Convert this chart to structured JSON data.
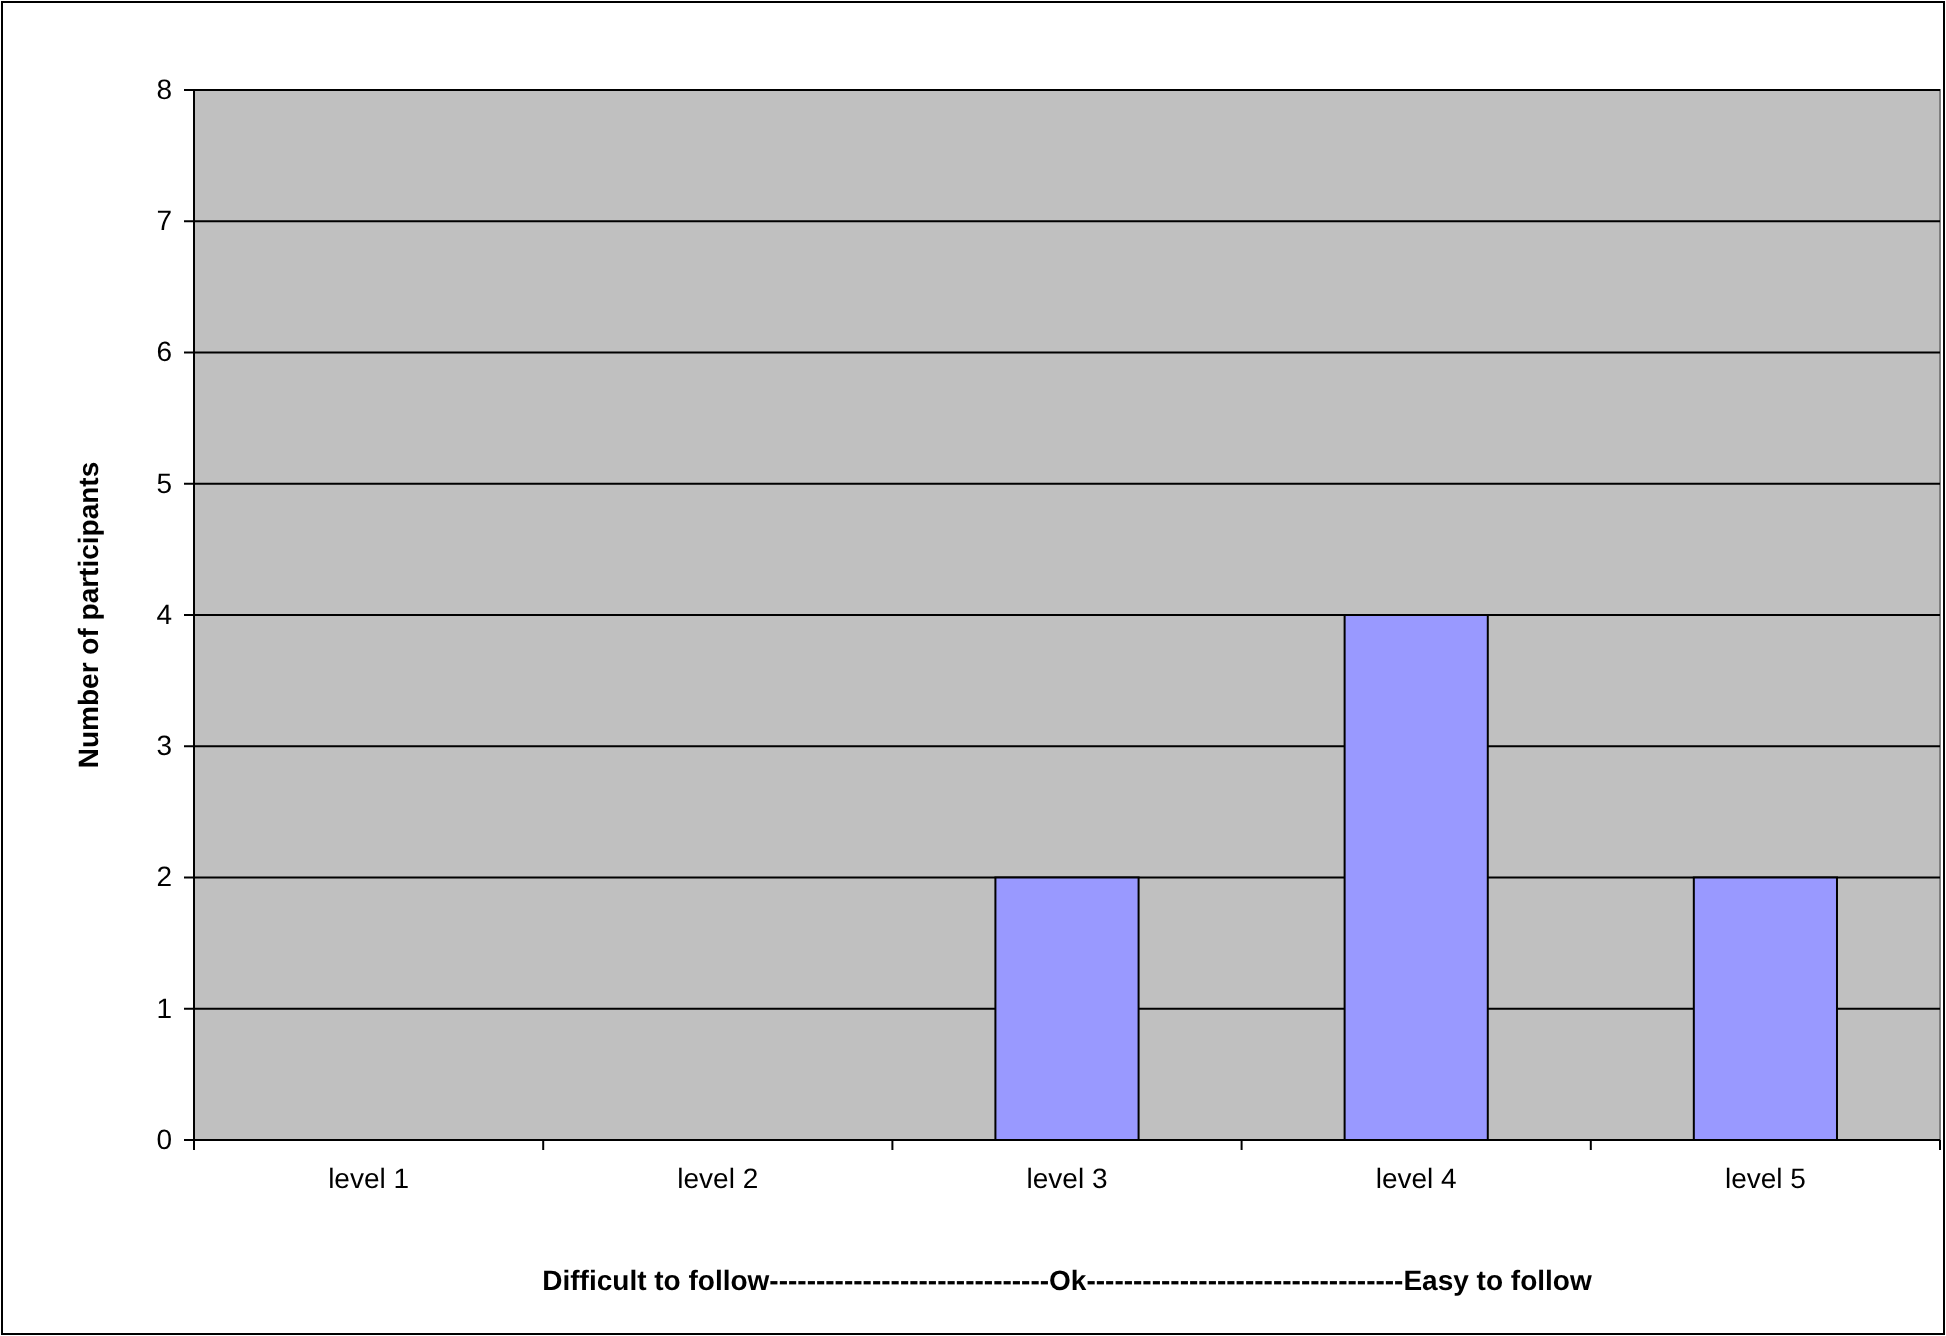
{
  "chart_data": {
    "type": "bar",
    "xlabel": "Difficult to follow------------------------------Ok----------------------------------Easy to follow",
    "ylabel": "Number of participants",
    "categories": [
      "level 1",
      "level 2",
      "level 3",
      "level 4",
      "level 5"
    ],
    "values": [
      0,
      0,
      2,
      4,
      2
    ],
    "color": "#9999ff",
    "ylim": [
      0,
      8
    ],
    "yticks": [
      0,
      1,
      2,
      3,
      4,
      5,
      6,
      7,
      8
    ],
    "grid": "y"
  }
}
